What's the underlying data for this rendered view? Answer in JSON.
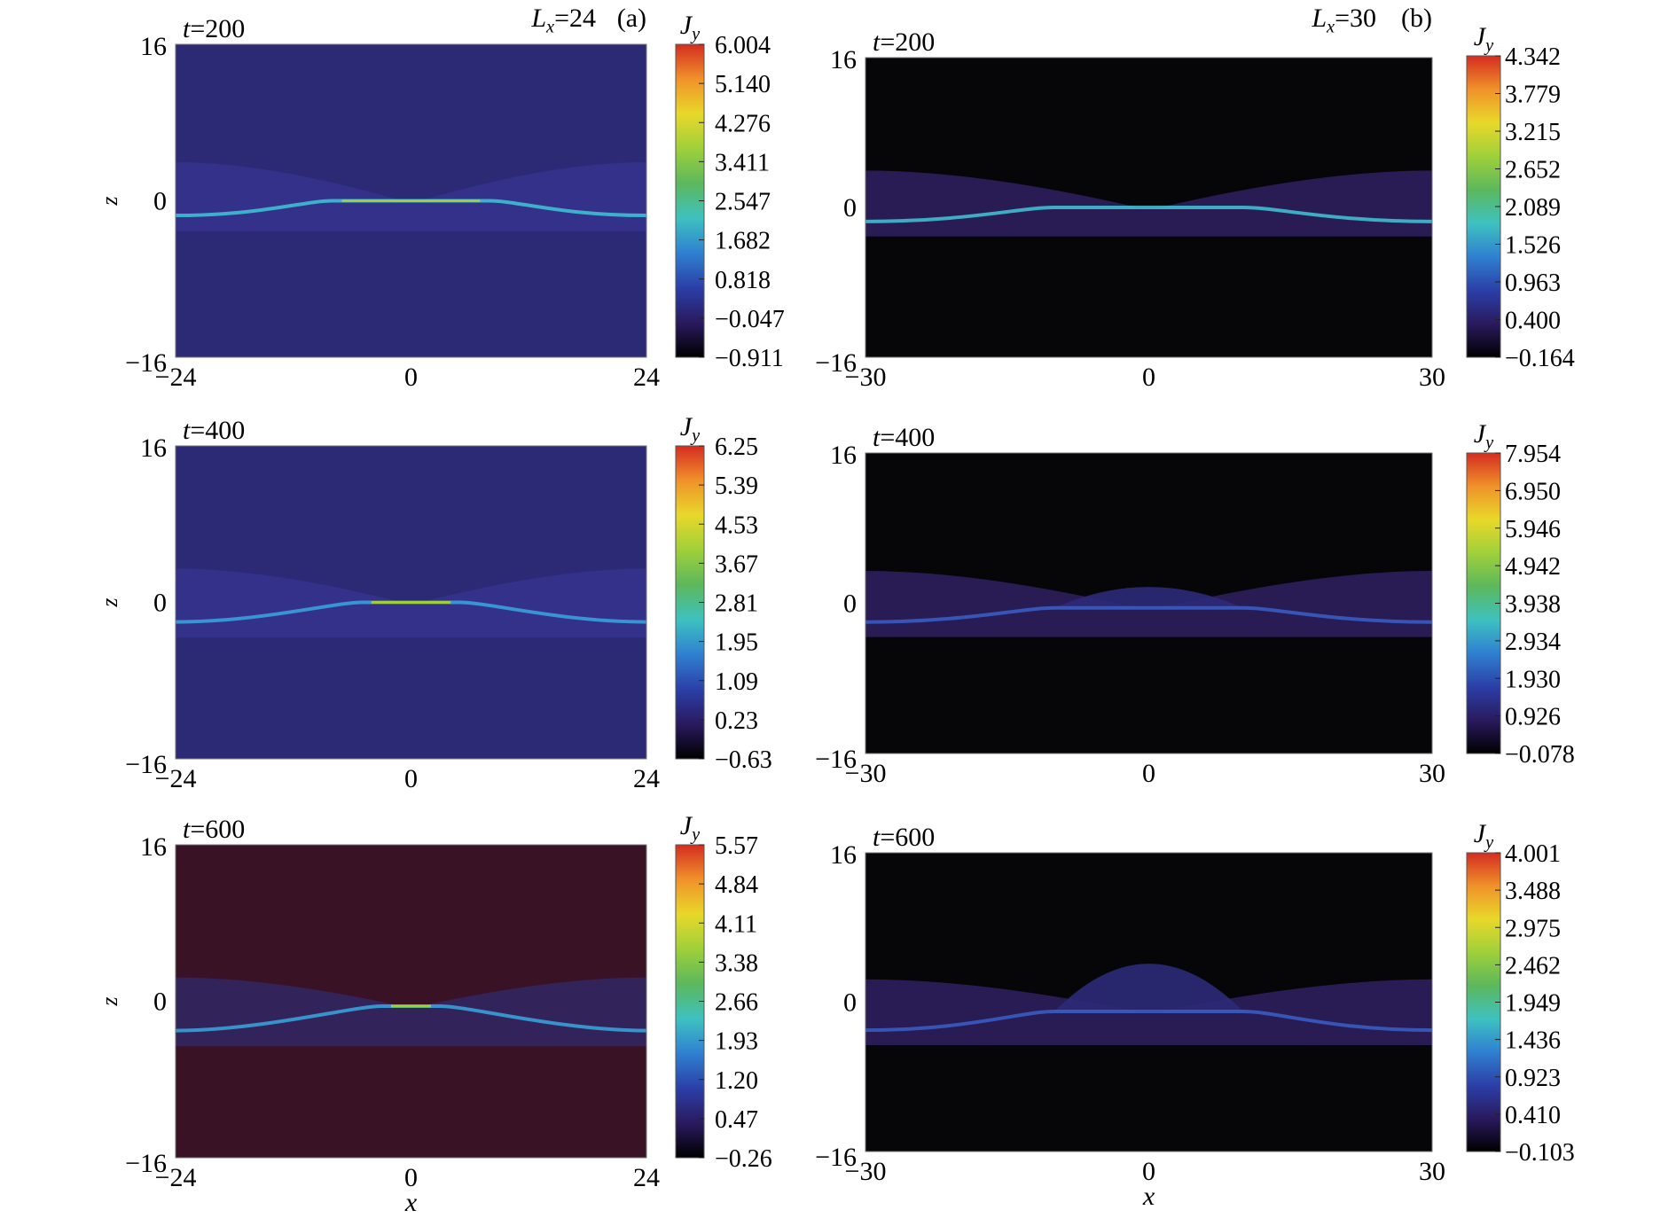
{
  "figure": {
    "panel_labels": [
      "(a)",
      "(b)"
    ],
    "column_headers": [
      {
        "symbol": "L",
        "subscript": "x",
        "value": "=24"
      },
      {
        "symbol": "L",
        "subscript": "x",
        "value": "=30"
      }
    ],
    "xlabel": "x",
    "ylabel": "z",
    "colorbar_label": {
      "symbol": "J",
      "subscript": "y"
    },
    "time_prefix": "t",
    "colormap": [
      "#000000",
      "#2a1a5e",
      "#2b3fa8",
      "#2f80d0",
      "#3ec1c0",
      "#5cb85c",
      "#9fd03a",
      "#e8d82a",
      "#f0922a",
      "#d42c20"
    ],
    "background_colors": {
      "indigo": "#2d2a75",
      "maroon": "#3a1226",
      "black": "#060508"
    }
  },
  "chart_data": [
    {
      "type": "heatmap",
      "panel": "a",
      "row": 1,
      "time": "=200",
      "title": "t=200",
      "xlim": [
        -24,
        24
      ],
      "ylim": [
        -16,
        16
      ],
      "xticks": [
        "−24",
        "0",
        "24"
      ],
      "yticks": [
        "16",
        "0",
        "−16"
      ],
      "colorbar_ticks": [
        "6.004",
        "5.140",
        "4.276",
        "3.411",
        "2.547",
        "1.682",
        "0.818",
        "−0.047",
        "−0.911"
      ],
      "colorbar_range": [
        -0.911,
        6.004
      ],
      "background": "indigo",
      "current_sheet": {
        "x_left": -24,
        "z_left": -1.5,
        "x_peak_start": -8,
        "x_peak_end": 8,
        "z_peak": 0
      }
    },
    {
      "type": "heatmap",
      "panel": "b",
      "row": 1,
      "time": "=200",
      "title": "t=200",
      "xlim": [
        -30,
        30
      ],
      "ylim": [
        -16,
        16
      ],
      "xticks": [
        "−30",
        "0",
        "30"
      ],
      "yticks": [
        "16",
        "0",
        "−16"
      ],
      "colorbar_ticks": [
        "4.342",
        "3.779",
        "3.215",
        "2.652",
        "2.089",
        "1.526",
        "0.963",
        "0.400",
        "−0.164"
      ],
      "colorbar_range": [
        -0.164,
        4.342
      ],
      "background": "black",
      "current_sheet": {
        "x_left": -30,
        "z_left": -1.5,
        "x_peak_start": -10,
        "x_peak_end": 10,
        "z_peak": 0
      }
    },
    {
      "type": "heatmap",
      "panel": "a",
      "row": 2,
      "time": "=400",
      "title": "t=400",
      "xlim": [
        -24,
        24
      ],
      "ylim": [
        -16,
        16
      ],
      "xticks": [
        "−24",
        "0",
        "24"
      ],
      "yticks": [
        "16",
        "0",
        "−16"
      ],
      "colorbar_ticks": [
        "6.25",
        "5.39",
        "4.53",
        "3.67",
        "2.81",
        "1.95",
        "1.09",
        "0.23",
        "−0.63"
      ],
      "colorbar_range": [
        -0.63,
        6.25
      ],
      "background": "indigo",
      "current_sheet": {
        "x_left": -24,
        "z_left": -2,
        "x_peak_start": -5,
        "x_peak_end": 5,
        "z_peak": 0
      }
    },
    {
      "type": "heatmap",
      "panel": "b",
      "row": 2,
      "time": "=400",
      "title": "t=400",
      "xlim": [
        -30,
        30
      ],
      "ylim": [
        -16,
        16
      ],
      "xticks": [
        "−30",
        "0",
        "30"
      ],
      "yticks": [
        "16",
        "0",
        "−16"
      ],
      "colorbar_ticks": [
        "7.954",
        "6.950",
        "5.946",
        "4.942",
        "3.938",
        "2.934",
        "1.930",
        "0.926",
        "−0.078"
      ],
      "colorbar_range": [
        -0.078,
        7.954
      ],
      "background": "black",
      "current_sheet": {
        "x_left": -30,
        "z_left": -2,
        "x_peak_start": -10,
        "x_peak_end": 10,
        "z_peak": -0.5
      }
    },
    {
      "type": "heatmap",
      "panel": "a",
      "row": 3,
      "time": "=600",
      "title": "t=600",
      "xlim": [
        -24,
        24
      ],
      "ylim": [
        -16,
        16
      ],
      "xticks": [
        "−24",
        "0",
        "24"
      ],
      "yticks": [
        "16",
        "0",
        "−16"
      ],
      "colorbar_ticks": [
        "5.57",
        "4.84",
        "4.11",
        "3.38",
        "2.66",
        "1.93",
        "1.20",
        "0.47",
        "−0.26"
      ],
      "colorbar_range": [
        -0.26,
        5.57
      ],
      "background": "maroon",
      "current_sheet": {
        "x_left": -24,
        "z_left": -3,
        "x_peak_start": -3,
        "x_peak_end": 3,
        "z_peak": -0.5
      }
    },
    {
      "type": "heatmap",
      "panel": "b",
      "row": 3,
      "time": "=600",
      "title": "t=600",
      "xlim": [
        -30,
        30
      ],
      "ylim": [
        -16,
        16
      ],
      "xticks": [
        "−30",
        "0",
        "30"
      ],
      "yticks": [
        "16",
        "0",
        "−16"
      ],
      "colorbar_ticks": [
        "4.001",
        "3.488",
        "2.975",
        "2.462",
        "1.949",
        "1.436",
        "0.923",
        "0.410",
        "−0.103"
      ],
      "colorbar_range": [
        -0.103,
        4.001
      ],
      "background": "black",
      "current_sheet": {
        "x_left": -30,
        "z_left": -3,
        "x_peak_start": -10,
        "x_peak_end": 10,
        "z_peak": -1
      }
    }
  ]
}
